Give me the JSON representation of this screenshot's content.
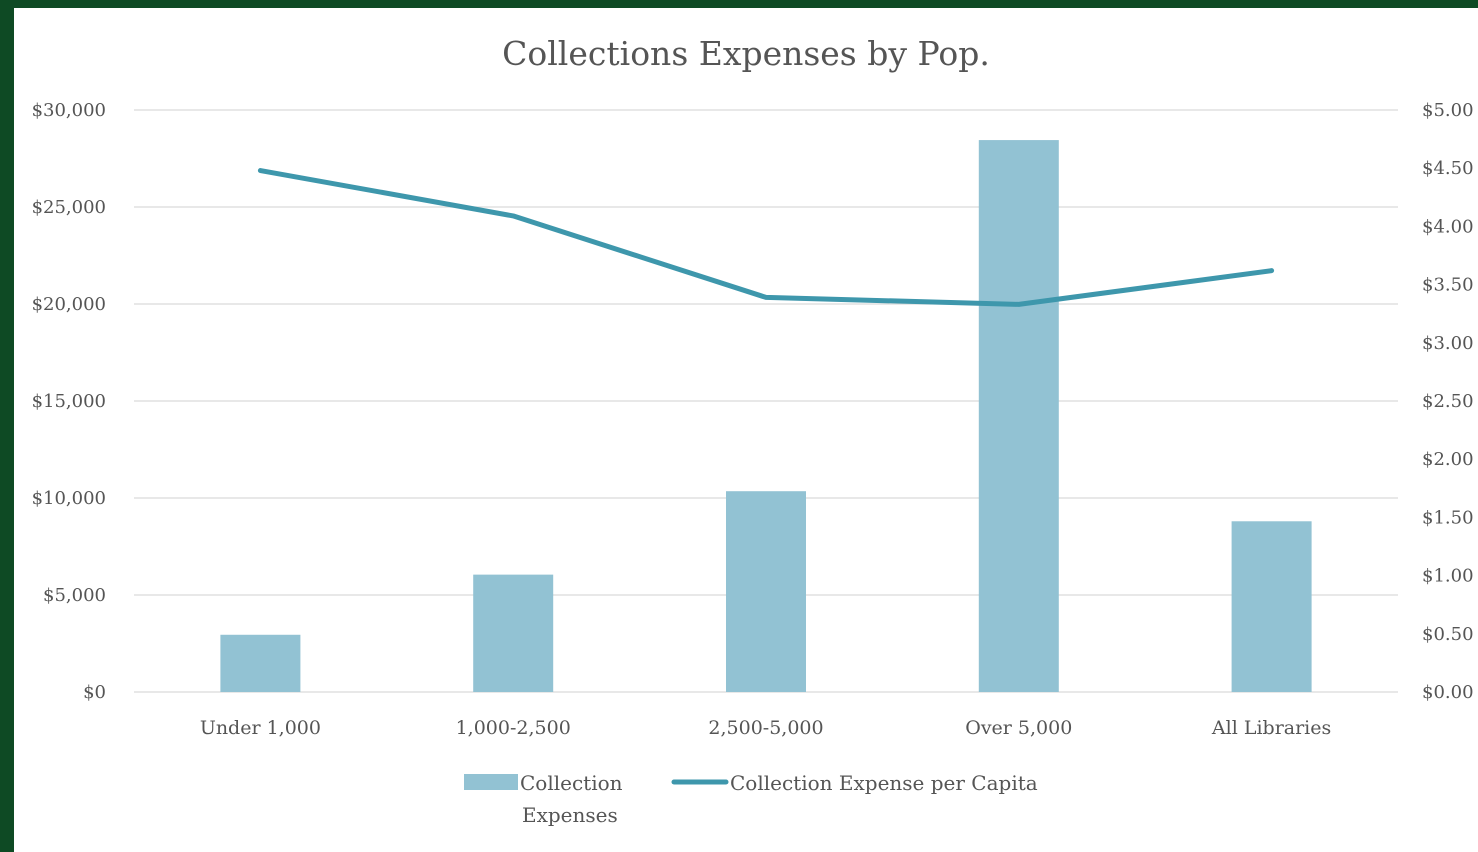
{
  "chart_data": {
    "type": "bar",
    "title": "Collections Expenses by Pop.",
    "categories": [
      "Under 1,000",
      "1,000-2,500",
      "2,500-5,000",
      "Over 5,000",
      "All Libraries"
    ],
    "series": [
      {
        "name": "Collection Expenses",
        "type": "bar",
        "axis": "left",
        "values": [
          2950,
          6050,
          10350,
          28450,
          8800
        ]
      },
      {
        "name": "Collection Expense per Capita",
        "type": "line",
        "axis": "right",
        "values": [
          4.48,
          4.09,
          3.39,
          3.33,
          3.62
        ]
      }
    ],
    "y_left": {
      "min": 0,
      "max": 30000,
      "ticks": [
        "$0",
        "$5,000",
        "$10,000",
        "$15,000",
        "$20,000",
        "$25,000",
        "$30,000"
      ]
    },
    "y_right": {
      "min": 0,
      "max": 5,
      "ticks": [
        "$0.00",
        "$0.50",
        "$1.00",
        "$1.50",
        "$2.00",
        "$2.50",
        "$3.00",
        "$3.50",
        "$4.00",
        "$4.50",
        "$5.00"
      ]
    },
    "grid": true,
    "legend_position": "bottom",
    "colors": {
      "bar": "#92c2d3",
      "line": "#3e97ac",
      "grid": "#d9d9d9",
      "text": "#555555",
      "frame": "#0e4a24"
    }
  }
}
